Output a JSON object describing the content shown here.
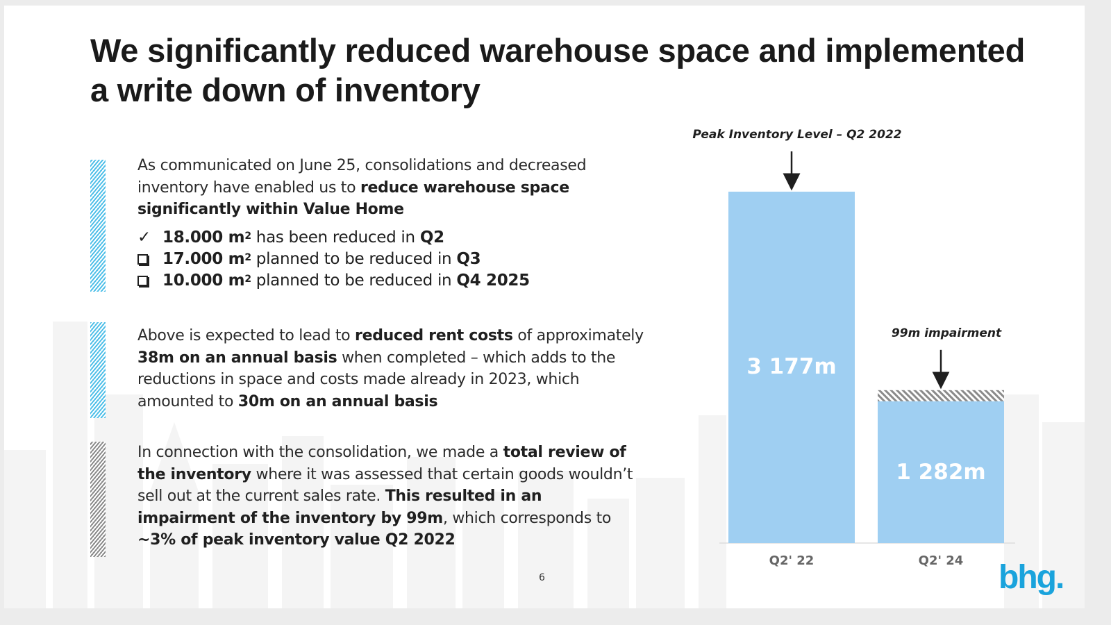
{
  "slide": {
    "title_line1": "We significantly reduced warehouse space and implemented",
    "title_line2": "a write down of inventory",
    "page_number": "6",
    "logo_text": "bhg."
  },
  "block1": {
    "text_a": "As communicated on June 25, consolidations and decreased inventory have enabled us to ",
    "bold_a": "reduce warehouse space significantly within Value Home",
    "items": [
      {
        "mark": "check",
        "bold": "18.000 m",
        "sup": "2",
        "text": " has been reduced in ",
        "bold_end": "Q2"
      },
      {
        "mark": "box",
        "bold": "17.000 m",
        "sup": "2",
        "text": " planned to be reduced in ",
        "bold_end": "Q3"
      },
      {
        "mark": "box",
        "bold": "10.000 m",
        "sup": "2",
        "text": " planned to be reduced in ",
        "bold_end": "Q4 2025"
      }
    ]
  },
  "block2": {
    "t1": "Above is expected to lead to ",
    "b1": "reduced rent costs",
    "t2": " of approximately ",
    "b2": "38m on an annual basis",
    "t3": " when completed – which adds to the reductions in space and costs made already in 2023, which amounted to ",
    "b3": "30m on an annual basis"
  },
  "block3": {
    "t1": "In connection with the consolidation, we made a ",
    "b1": "total review of the inventory",
    "t2": " where it was assessed that certain goods wouldn’t sell out at the current sales rate. ",
    "b2": "This resulted in an impairment of the inventory by 99m",
    "t3": ", which corresponds to ",
    "b3": "~3% of peak inventory value Q2 2022"
  },
  "chart_data": {
    "type": "bar",
    "title": "",
    "categories": [
      "Q2' 22",
      "Q2' 24"
    ],
    "series": [
      {
        "name": "Inventory",
        "values": [
          3177,
          1282
        ],
        "labels": [
          "3 177m",
          "1 282m"
        ],
        "color": "#9fcff2"
      },
      {
        "name": "Impairment",
        "values": [
          0,
          99
        ],
        "labels": [
          "",
          ""
        ],
        "color": "#8a8a8a"
      }
    ],
    "stacked": true,
    "annotations": [
      {
        "category": "Q2' 22",
        "text": "Peak Inventory Level – Q2 2022"
      },
      {
        "category": "Q2' 24",
        "text": "99m impairment"
      }
    ],
    "xlabel": "",
    "ylabel": "",
    "ylim": [
      0,
      3177
    ],
    "grid": false
  },
  "colors": {
    "accent_blue": "#4fbfe8",
    "bar_blue": "#9fcff2",
    "logo_blue": "#1aa3dc",
    "text_dark": "#1f1f1f"
  }
}
